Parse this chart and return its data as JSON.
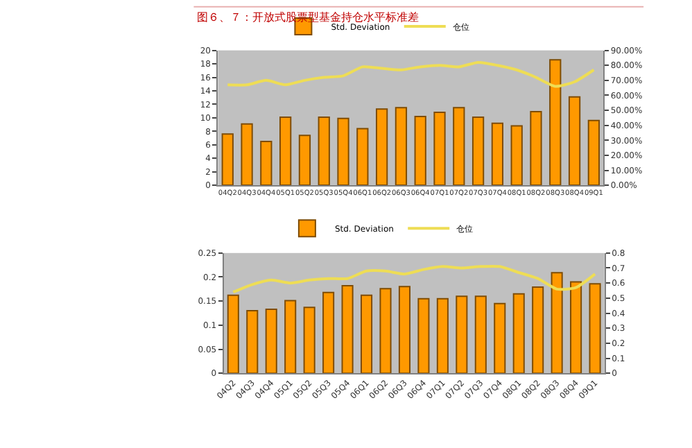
{
  "chart_data": [
    {
      "type": "bar",
      "title": "图６、７：开放式股票型基金持仓水平标准差",
      "categories": [
        "04Q2",
        "04Q3",
        "04Q4",
        "05Q1",
        "05Q2",
        "05Q3",
        "05Q4",
        "06Q1",
        "06Q2",
        "06Q3",
        "06Q4",
        "07Q1",
        "07Q2",
        "07Q3",
        "07Q4",
        "08Q1",
        "08Q2",
        "08Q3",
        "08Q4",
        "09Q1"
      ],
      "series": [
        {
          "name": "Std. Deviation",
          "color": "#ff9900",
          "values": [
            7.6,
            9.1,
            6.5,
            10.1,
            7.4,
            10.1,
            9.9,
            8.4,
            11.3,
            11.5,
            10.2,
            10.8,
            11.5,
            10.1,
            9.2,
            8.8,
            10.9,
            18.6,
            13.1,
            9.6
          ]
        },
        {
          "name": "仓位",
          "type": "line",
          "axis": "y2",
          "color": "#eedd55",
          "values": [
            0.67,
            0.67,
            0.7,
            0.67,
            0.7,
            0.72,
            0.73,
            0.79,
            0.78,
            0.77,
            0.79,
            0.8,
            0.79,
            0.82,
            0.8,
            0.77,
            0.72,
            0.66,
            0.69,
            0.77
          ]
        }
      ],
      "ylim": [
        0,
        20
      ],
      "yticks": [
        0,
        2,
        4,
        6,
        8,
        10,
        12,
        14,
        16,
        18,
        20
      ],
      "y2lim": [
        0,
        0.9
      ],
      "y2ticks": [
        {
          "value": 0,
          "label": "0.00%"
        },
        {
          "value": 0.1,
          "label": "10.00%"
        },
        {
          "value": 0.2,
          "label": "20.00%"
        },
        {
          "value": 0.3,
          "label": "30.00%"
        },
        {
          "value": 0.4,
          "label": "40.00%"
        },
        {
          "value": 0.5,
          "label": "50.00%"
        },
        {
          "value": 0.6,
          "label": "60.00%"
        },
        {
          "value": 0.7,
          "label": "70.00%"
        },
        {
          "value": 0.8,
          "label": "80.00%"
        },
        {
          "value": 0.9,
          "label": "90.00%"
        }
      ],
      "grid": false,
      "legend": "top"
    },
    {
      "type": "bar",
      "categories": [
        "04Q2",
        "04Q3",
        "04Q4",
        "05Q1",
        "05Q2",
        "05Q3",
        "05Q4",
        "06Q1",
        "06Q2",
        "06Q3",
        "06Q4",
        "07Q1",
        "07Q2",
        "07Q3",
        "07Q4",
        "08Q1",
        "08Q2",
        "08Q3",
        "08Q4",
        "09Q1"
      ],
      "series": [
        {
          "name": "Std. Deviation",
          "color": "#ff9900",
          "values": [
            0.162,
            0.13,
            0.133,
            0.151,
            0.137,
            0.168,
            0.182,
            0.162,
            0.176,
            0.18,
            0.155,
            0.155,
            0.16,
            0.16,
            0.145,
            0.165,
            0.179,
            0.209,
            0.19,
            0.186
          ]
        },
        {
          "name": "仓位",
          "type": "line",
          "axis": "y2",
          "color": "#eedd55",
          "values": [
            0.54,
            0.59,
            0.62,
            0.6,
            0.62,
            0.63,
            0.63,
            0.68,
            0.68,
            0.66,
            0.69,
            0.71,
            0.7,
            0.71,
            0.71,
            0.67,
            0.63,
            0.56,
            0.57,
            0.66
          ]
        }
      ],
      "ylim": [
        0,
        0.25
      ],
      "yticks": [
        0,
        0.05,
        0.1,
        0.15,
        0.2,
        0.25
      ],
      "y2lim": [
        0,
        0.8
      ],
      "y2ticks": [
        0,
        0.1,
        0.2,
        0.3,
        0.4,
        0.5,
        0.6,
        0.7,
        0.8
      ],
      "grid": false,
      "legend": "top"
    }
  ]
}
